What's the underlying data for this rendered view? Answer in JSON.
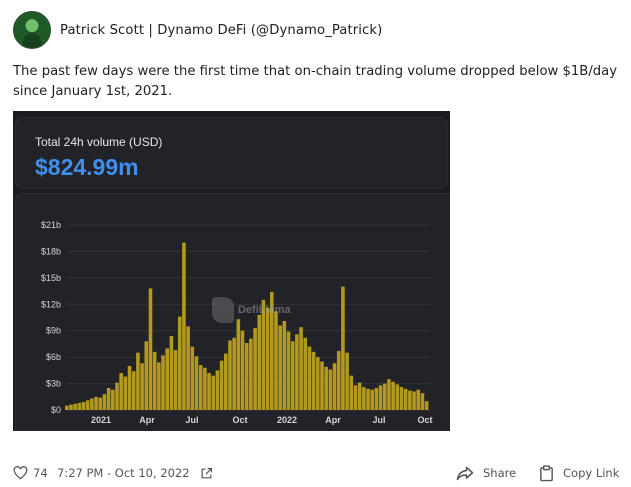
{
  "post": {
    "author": "Patrick Scott | Dynamo DeFi (@Dynamo_Patrick)",
    "text": "The past few days were the first time that on-chain trading volume dropped below $1B/day since January 1st, 2021."
  },
  "chart_card": {
    "label": "Total 24h volume (USD)",
    "value": "$824.99m",
    "watermark": "DefiLlama"
  },
  "chart_data": {
    "type": "bar",
    "title": "",
    "xlabel": "",
    "ylabel": "",
    "ylim": [
      0,
      21
    ],
    "y_unit": "$ billions",
    "y_ticks": [
      "$0",
      "$3b",
      "$6b",
      "$9b",
      "$12b",
      "$15b",
      "$18b",
      "$21b"
    ],
    "x_ticks": [
      "2021",
      "Apr",
      "Jul",
      "Oct",
      "2022",
      "Apr",
      "Jul",
      "Oct"
    ],
    "x_range": [
      "2020-10-20",
      "2022-10-10"
    ],
    "bar_color": "#b39a1f",
    "series": [
      {
        "values": [
          0.5,
          0.6,
          0.7,
          0.8,
          0.9,
          1.1,
          1.3,
          1.5,
          1.4,
          1.8,
          2.5,
          2.3,
          3.1,
          4.2,
          3.8,
          5.0,
          4.4,
          6.5,
          5.3,
          7.8,
          13.8,
          6.6,
          5.4,
          6.2,
          7.0,
          8.4,
          6.8,
          10.6,
          19.0,
          9.5,
          7.2,
          6.1,
          5.1,
          4.8,
          4.2,
          3.9,
          4.5,
          5.6,
          6.4,
          7.9,
          8.2,
          10.3,
          9.0,
          7.6,
          8.1,
          9.3,
          10.8,
          12.5,
          11.6,
          13.4,
          11.2,
          9.6,
          10.1,
          8.9,
          7.8,
          8.6,
          9.4,
          8.2,
          7.2,
          6.6,
          6.0,
          5.5,
          4.9,
          4.6,
          5.3,
          6.7,
          14.0,
          6.5,
          3.9,
          2.8,
          3.1,
          2.6,
          2.4,
          2.3,
          2.5,
          2.8,
          3.0,
          3.5,
          3.2,
          2.9,
          2.6,
          2.4,
          2.2,
          2.1,
          2.3,
          1.9,
          1.0
        ]
      }
    ]
  },
  "footer": {
    "like_count": "74",
    "timestamp": "7:27 PM - Oct 10, 2022",
    "share_label": "Share",
    "copy_link_label": "Copy Link",
    "icons": [
      "heart-icon",
      "external-link-icon",
      "share-icon",
      "clipboard-icon"
    ]
  }
}
